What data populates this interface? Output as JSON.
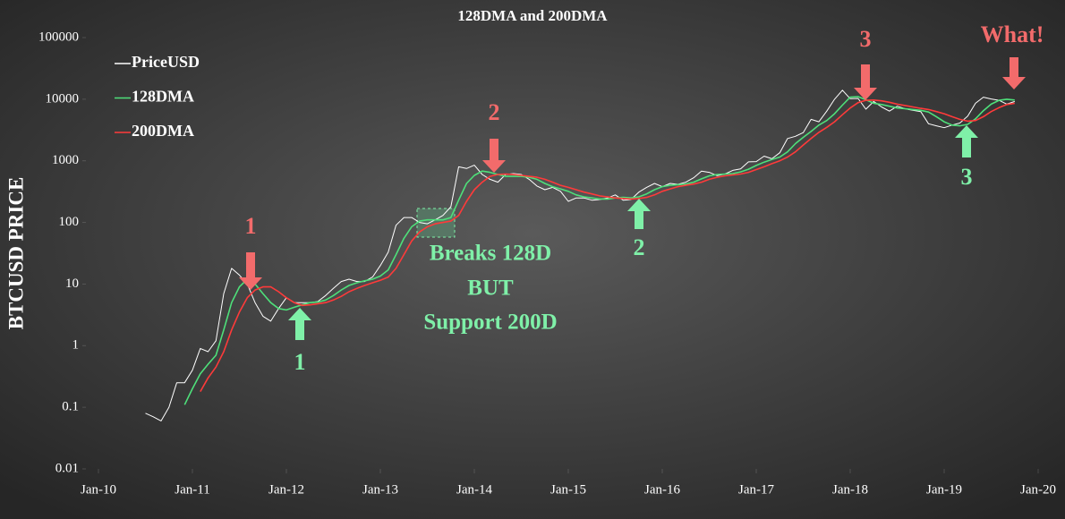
{
  "chart_data": {
    "type": "line",
    "title": "128DMA and 200DMA",
    "y_label": "BTCUSD PRICE",
    "log_scale": true,
    "legend": "top-left",
    "xlim": [
      "2010-01",
      "2020-01"
    ],
    "xticks": [
      {
        "value": "2010-01",
        "label": "Jan-10"
      },
      {
        "value": "2011-01",
        "label": "Jan-11"
      },
      {
        "value": "2012-01",
        "label": "Jan-12"
      },
      {
        "value": "2013-01",
        "label": "Jan-13"
      },
      {
        "value": "2014-01",
        "label": "Jan-14"
      },
      {
        "value": "2015-01",
        "label": "Jan-15"
      },
      {
        "value": "2016-01",
        "label": "Jan-16"
      },
      {
        "value": "2017-01",
        "label": "Jan-17"
      },
      {
        "value": "2018-01",
        "label": "Jan-18"
      },
      {
        "value": "2019-01",
        "label": "Jan-19"
      },
      {
        "value": "2020-01",
        "label": "Jan-20"
      }
    ],
    "ylim": [
      0.01,
      100000
    ],
    "yticks": [
      0.01,
      0.1,
      1,
      10,
      100,
      1000,
      10000,
      100000
    ],
    "x": [
      "2010-07",
      "2010-08",
      "2010-09",
      "2010-10",
      "2010-11",
      "2010-12",
      "2011-01",
      "2011-02",
      "2011-03",
      "2011-04",
      "2011-05",
      "2011-06",
      "2011-07",
      "2011-08",
      "2011-09",
      "2011-10",
      "2011-11",
      "2011-12",
      "2012-01",
      "2012-02",
      "2012-03",
      "2012-04",
      "2012-05",
      "2012-06",
      "2012-07",
      "2012-08",
      "2012-09",
      "2012-10",
      "2012-11",
      "2012-12",
      "2013-01",
      "2013-02",
      "2013-03",
      "2013-04",
      "2013-05",
      "2013-06",
      "2013-07",
      "2013-08",
      "2013-09",
      "2013-10",
      "2013-11",
      "2013-12",
      "2014-01",
      "2014-02",
      "2014-03",
      "2014-04",
      "2014-05",
      "2014-06",
      "2014-07",
      "2014-08",
      "2014-09",
      "2014-10",
      "2014-11",
      "2014-12",
      "2015-01",
      "2015-02",
      "2015-03",
      "2015-04",
      "2015-05",
      "2015-06",
      "2015-07",
      "2015-08",
      "2015-09",
      "2015-10",
      "2015-11",
      "2015-12",
      "2016-01",
      "2016-02",
      "2016-03",
      "2016-04",
      "2016-05",
      "2016-06",
      "2016-07",
      "2016-08",
      "2016-09",
      "2016-10",
      "2016-11",
      "2016-12",
      "2017-01",
      "2017-02",
      "2017-03",
      "2017-04",
      "2017-05",
      "2017-06",
      "2017-07",
      "2017-08",
      "2017-09",
      "2017-10",
      "2017-11",
      "2017-12",
      "2018-01",
      "2018-02",
      "2018-03",
      "2018-04",
      "2018-05",
      "2018-06",
      "2018-07",
      "2018-08",
      "2018-09",
      "2018-10",
      "2018-11",
      "2018-12",
      "2019-01",
      "2019-02",
      "2019-03",
      "2019-04",
      "2019-05",
      "2019-06",
      "2019-07",
      "2019-08",
      "2019-09",
      "2019-10"
    ],
    "series": [
      {
        "name": "PriceUSD",
        "color": "#ffffff",
        "values": [
          0.08,
          0.07,
          0.06,
          0.1,
          0.25,
          0.25,
          0.4,
          0.9,
          0.8,
          1.2,
          7,
          18,
          14,
          10,
          5,
          3,
          2.5,
          4,
          6,
          5,
          5,
          5,
          5.2,
          6.5,
          8.5,
          11,
          12,
          11,
          11,
          13,
          20,
          33,
          90,
          120,
          120,
          100,
          95,
          110,
          130,
          180,
          800,
          750,
          850,
          600,
          500,
          450,
          600,
          620,
          600,
          500,
          390,
          340,
          370,
          320,
          220,
          250,
          250,
          230,
          235,
          250,
          280,
          230,
          235,
          310,
          370,
          430,
          380,
          430,
          415,
          450,
          530,
          680,
          650,
          575,
          610,
          700,
          740,
          960,
          970,
          1190,
          1080,
          1350,
          2300,
          2500,
          2870,
          4700,
          4300,
          6400,
          10000,
          14000,
          10200,
          10300,
          6900,
          9200,
          7500,
          6400,
          7700,
          7000,
          6600,
          6300,
          4000,
          3700,
          3450,
          3800,
          4100,
          5300,
          8600,
          10800,
          10100,
          9600,
          8300,
          9200
        ]
      },
      {
        "name": "128DMA",
        "color": "#4ee07a",
        "values": [
          null,
          null,
          null,
          null,
          null,
          0.11,
          0.2,
          0.35,
          0.5,
          0.7,
          1.8,
          5,
          9,
          12,
          10,
          7,
          5,
          4,
          3.8,
          4.2,
          4.6,
          5,
          5.1,
          5.5,
          6.5,
          8,
          9.5,
          10.5,
          11.3,
          12,
          13.5,
          17,
          30,
          55,
          85,
          105,
          110,
          110,
          110,
          120,
          230,
          430,
          580,
          680,
          650,
          600,
          560,
          560,
          560,
          540,
          500,
          430,
          380,
          350,
          320,
          280,
          260,
          250,
          240,
          240,
          250,
          255,
          250,
          260,
          290,
          340,
          380,
          400,
          410,
          420,
          450,
          510,
          570,
          600,
          610,
          620,
          660,
          730,
          840,
          950,
          1050,
          1150,
          1400,
          1900,
          2400,
          3000,
          3800,
          4500,
          5800,
          8000,
          10800,
          11000,
          9800,
          8600,
          8200,
          7700,
          7200,
          7000,
          6800,
          6600,
          6200,
          5200,
          4300,
          3800,
          3700,
          3900,
          4800,
          6500,
          8300,
          9600,
          10000,
          9700
        ]
      },
      {
        "name": "200DMA",
        "color": "#ff3a3a",
        "values": [
          null,
          null,
          null,
          null,
          null,
          null,
          null,
          0.18,
          0.3,
          0.45,
          0.8,
          1.8,
          3.5,
          6,
          8,
          9,
          9,
          7.5,
          6,
          5,
          4.5,
          4.6,
          4.8,
          5,
          5.5,
          6.3,
          7.5,
          8.5,
          9.5,
          10.5,
          11.5,
          13,
          18,
          30,
          50,
          70,
          85,
          95,
          100,
          105,
          130,
          220,
          340,
          450,
          560,
          600,
          610,
          600,
          580,
          560,
          540,
          500,
          450,
          400,
          370,
          340,
          310,
          290,
          270,
          260,
          250,
          245,
          240,
          245,
          255,
          280,
          320,
          350,
          380,
          400,
          420,
          450,
          500,
          540,
          570,
          590,
          610,
          650,
          720,
          800,
          900,
          1000,
          1150,
          1400,
          1800,
          2300,
          2900,
          3500,
          4300,
          5600,
          7200,
          8800,
          9600,
          9700,
          9400,
          8900,
          8300,
          7900,
          7500,
          7100,
          6800,
          6300,
          5800,
          5200,
          4700,
          4400,
          4500,
          5200,
          6300,
          7300,
          8200,
          8600
        ]
      }
    ],
    "annotations": [
      {
        "text": "1",
        "color": "#f26b6b"
      },
      {
        "text": "2",
        "color": "#f26b6b"
      },
      {
        "text": "3",
        "color": "#f26b6b"
      },
      {
        "text": "What!",
        "color": "#f26b6b"
      },
      {
        "text": "1",
        "color": "#7ff0a8"
      },
      {
        "text": "2",
        "color": "#7ff0a8"
      },
      {
        "text": "3",
        "color": "#7ff0a8"
      },
      {
        "text": "Breaks 128D",
        "color": "#7ff0a8"
      },
      {
        "text": "BUT",
        "color": "#7ff0a8"
      },
      {
        "text": "Support 200D",
        "color": "#7ff0a8"
      }
    ]
  }
}
